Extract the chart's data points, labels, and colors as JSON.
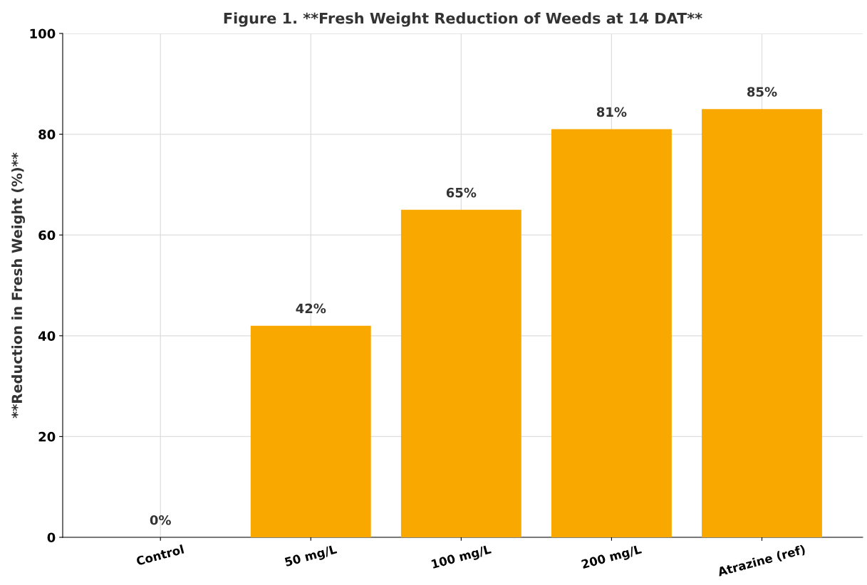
{
  "chart_data": {
    "type": "bar",
    "title": "Figure 1. **Fresh Weight Reduction of Weeds at 14 DAT**",
    "ylabel": "**Reduction in Fresh Weight (%)**",
    "categories": [
      "Control",
      "50 mg/L",
      "100 mg/L",
      "200 mg/L",
      "Atrazine (ref)"
    ],
    "values": [
      0,
      42,
      65,
      81,
      85
    ],
    "value_labels": [
      "0%",
      "42%",
      "65%",
      "81%",
      "85%"
    ],
    "color": "#f9a800",
    "ylim": [
      0,
      100
    ],
    "yticks": [
      0,
      20,
      40,
      60,
      80,
      100
    ],
    "grid": true
  }
}
